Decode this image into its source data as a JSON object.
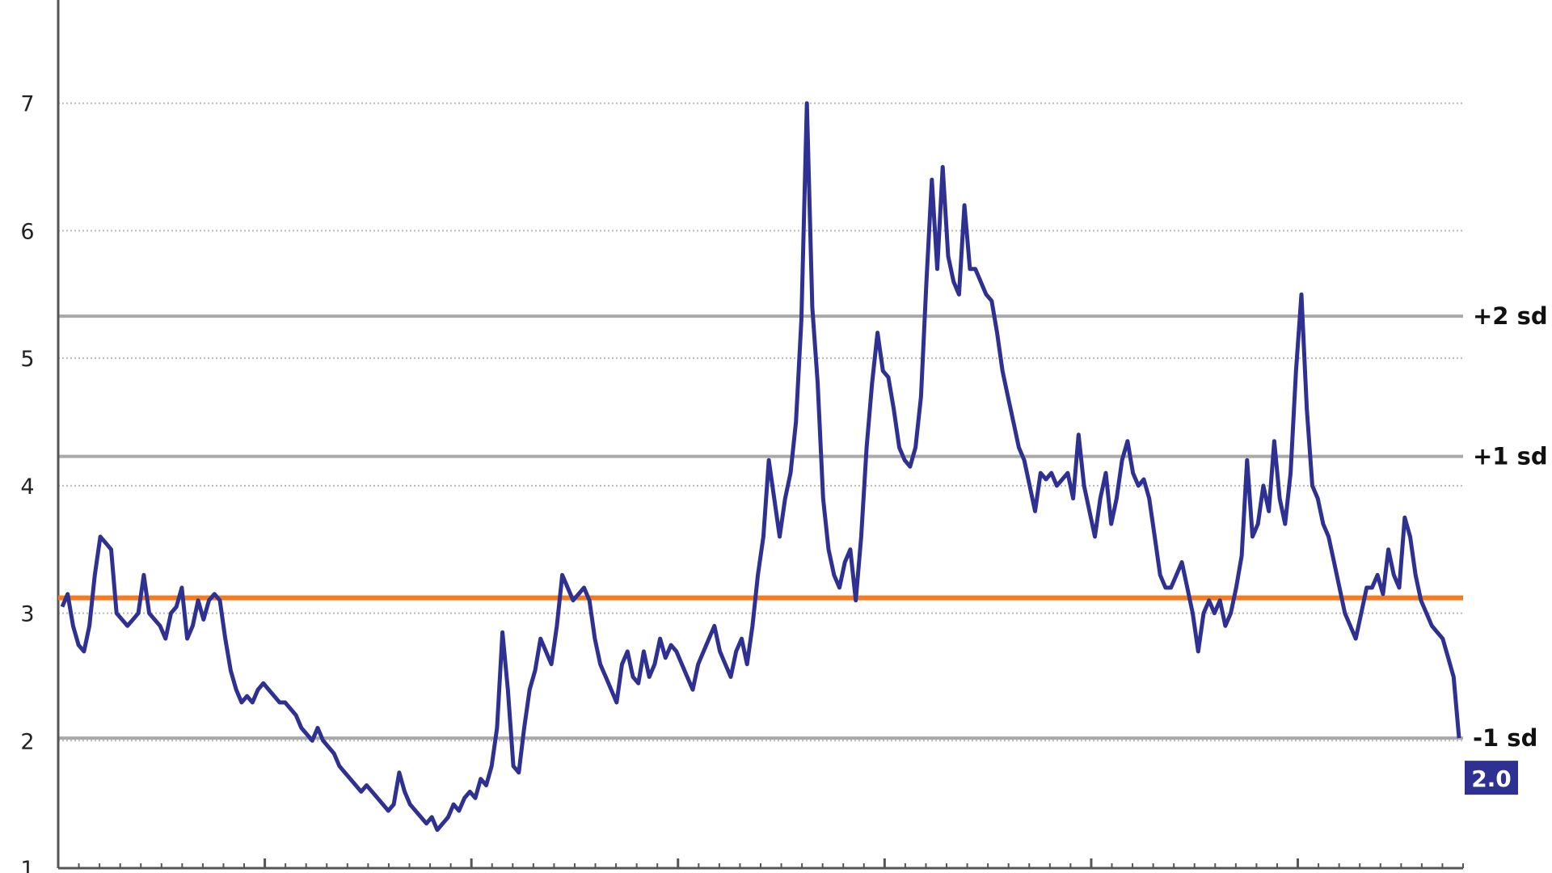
{
  "chart_data": {
    "type": "line",
    "title": "",
    "xlabel": "",
    "ylabel": "",
    "ylim": [
      1,
      8
    ],
    "y_ticks": [
      "1",
      "2",
      "3",
      "4",
      "5",
      "6",
      "7"
    ],
    "grid": "horizontal dotted",
    "colors": {
      "series": "#2e3192",
      "mean_line": "#f47b20",
      "sd_lines": "#a9a9a9",
      "grid": "#b9b9b9",
      "axis": "#555555",
      "badge": "#2e3192"
    },
    "mean": 3.12,
    "reference_lines": [
      {
        "label": "+2 sd",
        "value": 5.33
      },
      {
        "label": "+1 sd",
        "value": 4.23
      },
      {
        "label": "-1 sd",
        "value": 2.02
      }
    ],
    "last_value_label": "2.0",
    "series": [
      {
        "values": [
          3.05,
          3.15,
          2.9,
          2.75,
          2.7,
          2.9,
          3.3,
          3.6,
          3.55,
          3.5,
          3.0,
          2.95,
          2.9,
          2.95,
          3.0,
          3.3,
          3.0,
          2.95,
          2.9,
          2.8,
          3.0,
          3.05,
          3.2,
          2.8,
          2.9,
          3.1,
          2.95,
          3.1,
          3.15,
          3.1,
          2.8,
          2.55,
          2.4,
          2.3,
          2.35,
          2.3,
          2.4,
          2.45,
          2.4,
          2.35,
          2.3,
          2.3,
          2.25,
          2.2,
          2.1,
          2.05,
          2.0,
          2.1,
          2.0,
          1.95,
          1.9,
          1.8,
          1.75,
          1.7,
          1.65,
          1.6,
          1.65,
          1.6,
          1.55,
          1.5,
          1.45,
          1.5,
          1.75,
          1.6,
          1.5,
          1.45,
          1.4,
          1.35,
          1.4,
          1.3,
          1.35,
          1.4,
          1.5,
          1.45,
          1.55,
          1.6,
          1.55,
          1.7,
          1.65,
          1.8,
          2.1,
          2.85,
          2.4,
          1.8,
          1.75,
          2.1,
          2.4,
          2.55,
          2.8,
          2.7,
          2.6,
          2.9,
          3.3,
          3.2,
          3.1,
          3.15,
          3.2,
          3.1,
          2.8,
          2.6,
          2.5,
          2.4,
          2.3,
          2.6,
          2.7,
          2.5,
          2.45,
          2.7,
          2.5,
          2.6,
          2.8,
          2.65,
          2.75,
          2.7,
          2.6,
          2.5,
          2.4,
          2.6,
          2.7,
          2.8,
          2.9,
          2.7,
          2.6,
          2.5,
          2.7,
          2.8,
          2.6,
          2.9,
          3.3,
          3.6,
          4.2,
          3.9,
          3.6,
          3.9,
          4.1,
          4.5,
          5.3,
          7.0,
          5.4,
          4.8,
          3.9,
          3.5,
          3.3,
          3.2,
          3.4,
          3.5,
          3.1,
          3.6,
          4.3,
          4.8,
          5.2,
          4.9,
          4.85,
          4.6,
          4.3,
          4.2,
          4.15,
          4.3,
          4.7,
          5.6,
          6.4,
          5.7,
          6.5,
          5.8,
          5.6,
          5.5,
          6.2,
          5.7,
          5.7,
          5.6,
          5.5,
          5.45,
          5.2,
          4.9,
          4.7,
          4.5,
          4.3,
          4.2,
          4.0,
          3.8,
          4.1,
          4.05,
          4.1,
          4.0,
          4.05,
          4.1,
          3.9,
          4.4,
          4.0,
          3.8,
          3.6,
          3.9,
          4.1,
          3.7,
          3.9,
          4.2,
          4.35,
          4.1,
          4.0,
          4.05,
          3.9,
          3.6,
          3.3,
          3.2,
          3.2,
          3.3,
          3.4,
          3.2,
          3.0,
          2.7,
          3.0,
          3.1,
          3.0,
          3.1,
          2.9,
          3.0,
          3.2,
          3.45,
          4.2,
          3.6,
          3.7,
          4.0,
          3.8,
          4.35,
          3.9,
          3.7,
          4.1,
          4.9,
          5.5,
          4.6,
          4.0,
          3.9,
          3.7,
          3.6,
          3.4,
          3.2,
          3.0,
          2.9,
          2.8,
          3.0,
          3.2,
          3.2,
          3.3,
          3.15,
          3.5,
          3.3,
          3.2,
          3.75,
          3.6,
          3.3,
          3.1,
          3.0,
          2.9,
          2.85,
          2.8,
          2.65,
          2.5,
          2.02
        ]
      }
    ]
  }
}
